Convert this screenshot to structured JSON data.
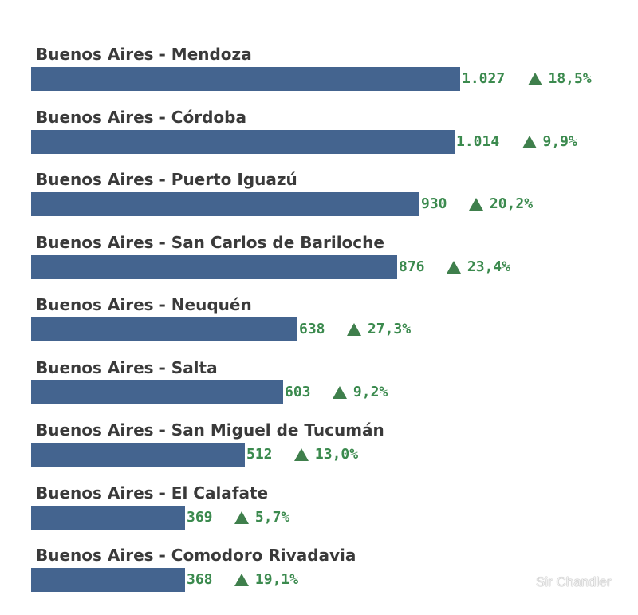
{
  "chart_data": {
    "type": "bar",
    "orientation": "horizontal",
    "categories": [
      "Buenos Aires - Mendoza",
      "Buenos Aires - Córdoba",
      "Buenos Aires - Puerto Iguazú",
      "Buenos Aires - San Carlos de Bariloche",
      "Buenos Aires - Neuquén",
      "Buenos Aires - Salta",
      "Buenos Aires - San Miguel de Tucumán",
      "Buenos Aires - El Calafate",
      "Buenos Aires - Comodoro Rivadavia"
    ],
    "values": [
      1027,
      1014,
      930,
      876,
      638,
      603,
      512,
      369,
      368
    ],
    "value_labels": [
      "1.027",
      "1.014",
      "930",
      "876",
      "638",
      "603",
      "512",
      "369",
      "368"
    ],
    "changes": [
      18.5,
      9.9,
      20.2,
      23.4,
      27.3,
      9.2,
      13.0,
      5.7,
      19.1
    ],
    "change_labels": [
      "18,5%",
      "9,9%",
      "20,2%",
      "23,4%",
      "27,3%",
      "9,2%",
      "13,0%",
      "5,7%",
      "19,1%"
    ],
    "change_direction": "up",
    "title": "",
    "xlabel": "",
    "ylabel": "",
    "xlim": [
      0,
      1027
    ],
    "grid": false,
    "legend": "none",
    "colors": {
      "bar": "#44648f",
      "label_text": "#3a3a3a",
      "value_text": "#3b8a4e",
      "arrow": "#3f7f4c"
    },
    "watermark": "Sir Chandler"
  }
}
